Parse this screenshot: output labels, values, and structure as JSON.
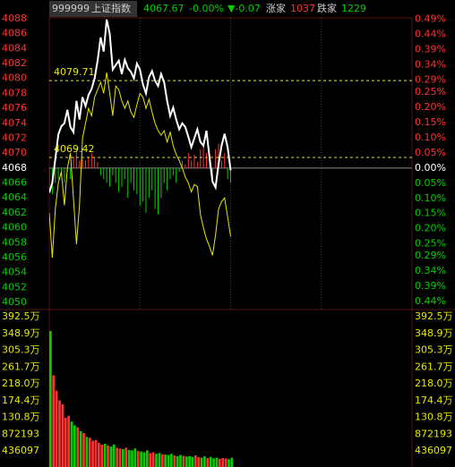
{
  "header": {
    "code": "999999",
    "name": "上证指数",
    "price": "4067.67",
    "change_pct": "-0.00%",
    "change": "▼-0.07",
    "up_label": "涨家",
    "up_count": "1037",
    "down_label": "跌家",
    "down_count": "1229"
  },
  "chart_data": [
    {
      "type": "line",
      "baseline": 4068,
      "xlim": [
        0,
        240
      ],
      "xticks": [
        60,
        120,
        180
      ],
      "x": [
        0,
        2,
        4,
        6,
        8,
        10,
        12,
        14,
        16,
        18,
        20,
        22,
        24,
        26,
        28,
        30,
        32,
        34,
        36,
        38,
        40,
        42,
        44,
        46,
        48,
        50,
        52,
        54,
        56,
        58,
        60,
        62,
        64,
        66,
        68,
        70,
        72,
        74,
        76,
        78,
        80,
        82,
        84,
        86,
        88,
        90,
        92,
        94,
        96,
        98,
        100,
        102,
        104,
        106,
        108,
        110,
        112,
        114,
        116,
        118,
        120
      ],
      "ylim": [
        4048.8,
        4089.2
      ],
      "yticks": [
        4088,
        4086,
        4084,
        4082,
        4080,
        4078,
        4076,
        4074,
        4072,
        4070,
        4068,
        4066,
        4064,
        4062,
        4060,
        4058,
        4056,
        4054,
        4052,
        4050
      ],
      "y2lim": [
        -0.472,
        0.521
      ],
      "y2ticks": [
        {
          "value": 0.49,
          "label": "0.49%"
        },
        {
          "value": 0.44,
          "label": "0.44%"
        },
        {
          "value": 0.39,
          "label": "0.39%"
        },
        {
          "value": 0.34,
          "label": "0.34%"
        },
        {
          "value": 0.29,
          "label": "0.29%"
        },
        {
          "value": 0.25,
          "label": "0.25%"
        },
        {
          "value": 0.2,
          "label": "0.20%"
        },
        {
          "value": 0.15,
          "label": "0.15%"
        },
        {
          "value": 0.1,
          "label": "0.10%"
        },
        {
          "value": 0.05,
          "label": "0.05%"
        },
        {
          "value": 0,
          "label": "0.00%"
        },
        {
          "value": -0.05,
          "label": "0.05%"
        },
        {
          "value": -0.1,
          "label": "0.10%"
        },
        {
          "value": -0.15,
          "label": "0.15%"
        },
        {
          "value": -0.2,
          "label": "0.20%"
        },
        {
          "value": -0.25,
          "label": "0.25%"
        },
        {
          "value": -0.29,
          "label": "0.29%"
        },
        {
          "value": -0.34,
          "label": "0.34%"
        },
        {
          "value": -0.39,
          "label": "0.39%"
        },
        {
          "value": -0.44,
          "label": "0.44%"
        }
      ],
      "reference_lines": [
        4079.71,
        4069.42
      ],
      "up_color": "#ff3232",
      "down_color": "#00d000",
      "flat_color": "#ffffff",
      "reference_color": "#e8e800",
      "series": [
        {
          "color": "#ffffff",
          "values": [
            4064.7,
            4066.0,
            4069.2,
            4072.5,
            4073.6,
            4074.0,
            4075.8,
            4073.5,
            4072.8,
            4077.0,
            4074.5,
            4077.5,
            4076.3,
            4077.8,
            4078.6,
            4080.0,
            4082.4,
            4085.5,
            4083.6,
            4087.9,
            4086.0,
            4081.2,
            4081.8,
            4082.4,
            4080.6,
            4082.5,
            4081.4,
            4080.9,
            4080.0,
            4082.0,
            4081.2,
            4079.2,
            4078.0,
            4080.2,
            4081.0,
            4079.7,
            4079.0,
            4080.6,
            4079.5,
            4077.0,
            4075.0,
            4076.1,
            4074.5,
            4073.2,
            4074.0,
            4073.5,
            4072.2,
            4070.8,
            4072.0,
            4073.2,
            4071.5,
            4071.0,
            4073.0,
            4069.5,
            4066.2,
            4065.4,
            4068.5,
            4071.0,
            4072.6,
            4070.8,
            4067.7
          ]
        },
        {
          "color": "#e8e800",
          "values": [
            4062.0,
            4056.0,
            4062.5,
            4066.0,
            4067.5,
            4063.0,
            4068.0,
            4070.0,
            4064.0,
            4057.8,
            4063.0,
            4072.0,
            4074.0,
            4076.0,
            4075.0,
            4077.5,
            4078.5,
            4079.5,
            4078.0,
            4080.8,
            4078.0,
            4075.0,
            4079.0,
            4078.5,
            4077.0,
            4076.0,
            4077.0,
            4075.5,
            4074.8,
            4076.5,
            4078.0,
            4077.5,
            4076.0,
            4077.2,
            4075.5,
            4074.0,
            4073.0,
            4072.4,
            4073.0,
            4071.5,
            4072.8,
            4071.0,
            4069.8,
            4069.0,
            4068.0,
            4066.8,
            4066.0,
            4064.8,
            4065.8,
            4065.5,
            4061.8,
            4060.0,
            4058.5,
            4057.5,
            4056.3,
            4059.0,
            4062.5,
            4063.5,
            4064.0,
            4061.5,
            4058.8
          ]
        }
      ],
      "breadth": [
        4065.0,
        4064.5,
        4066.0,
        4066.5,
        4067.0,
        4066.0,
        4067.5,
        4066.5,
        4069.5,
        4070.5,
        4069.0,
        4069.2,
        4069.0,
        4069.5,
        4070.0,
        4069.5,
        4068.8,
        4067.0,
        4066.5,
        4066.0,
        4065.5,
        4067.0,
        4066.0,
        4064.8,
        4065.5,
        4066.5,
        4064.0,
        4066.0,
        4065.0,
        4064.5,
        4063.0,
        4063.5,
        4062.0,
        4064.0,
        4065.0,
        4062.5,
        4061.8,
        4064.0,
        4066.0,
        4065.0,
        4066.5,
        4067.0,
        4066.0,
        4067.5,
        4069.0,
        4068.5,
        4070.0,
        4069.0,
        4069.8,
        4068.8,
        4070.5,
        4071.0,
        4070.0,
        4069.5,
        4066.0,
        4070.5,
        4071.2,
        4069.0,
        4070.0,
        4066.5,
        4066.0
      ]
    },
    {
      "type": "bar",
      "ylim": [
        0,
        3924873
      ],
      "yticks": [
        {
          "value": 3924873,
          "label": "392.5万"
        },
        {
          "value": 3488776,
          "label": "348.9万"
        },
        {
          "value": 3052679,
          "label": "305.3万"
        },
        {
          "value": 2616582,
          "label": "261.7万"
        },
        {
          "value": 2180485,
          "label": "218.0万"
        },
        {
          "value": 1744388,
          "label": "174.4万"
        },
        {
          "value": 1308291,
          "label": "130.8万"
        },
        872193,
        436097
      ],
      "tick_color": "#e8e800",
      "up_color": "#ff3232",
      "down_color": "#00d000",
      "values": [
        3550000,
        2400000,
        2000000,
        1750000,
        1650000,
        1300000,
        1350000,
        1200000,
        1100000,
        1050000,
        950000,
        900000,
        800000,
        780000,
        700000,
        720000,
        650000,
        600000,
        620000,
        580000,
        550000,
        600000,
        520000,
        500000,
        480000,
        520000,
        460000,
        450000,
        500000,
        430000,
        420000,
        400000,
        450000,
        380000,
        400000,
        360000,
        380000,
        350000,
        340000,
        330000,
        360000,
        320000,
        300000,
        330000,
        310000,
        290000,
        300000,
        280000,
        320000,
        270000,
        260000,
        300000,
        250000,
        280000,
        240000,
        260000,
        230000,
        250000,
        240000,
        220000,
        260000
      ]
    }
  ]
}
